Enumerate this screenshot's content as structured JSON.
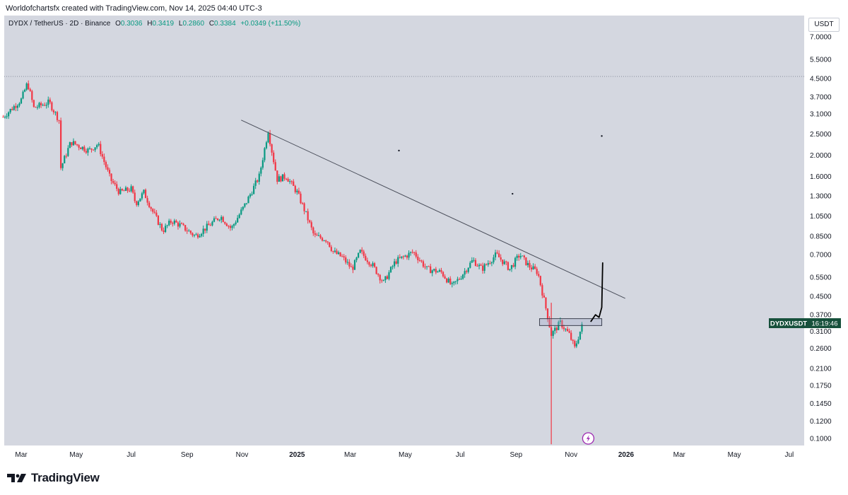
{
  "header": {
    "caption": "Worldofchartsfx created with TradingView.com, Nov 14, 2025 04:40 UTC-3"
  },
  "legend": {
    "symbol": "DYDX / TetherUS · 2D · Binance",
    "o_label": "O",
    "o_value": "0.3036",
    "h_label": "H",
    "h_value": "0.3419",
    "l_label": "L",
    "l_value": "0.2860",
    "c_label": "C",
    "c_value": "0.3384",
    "change": "+0.0349 (+11.50%)"
  },
  "currency_button": "USDT",
  "symbol_tag": {
    "name": "DYDXUSDT",
    "countdown": "16:19:46"
  },
  "footer": {
    "brand": "TradingView",
    "logo_icon": "tradingview-logo-icon"
  },
  "colors": {
    "up": "#089981",
    "down": "#f23645",
    "background": "#d4d7e0",
    "tag": "#16503b"
  },
  "chart_data": {
    "type": "candlestick",
    "y_scale": "log",
    "y_ticks": [
      "7.0000",
      "5.5000",
      "4.5000",
      "3.7000",
      "3.1000",
      "2.5000",
      "2.0000",
      "1.6000",
      "1.3000",
      "1.0500",
      "0.8500",
      "0.7000",
      "0.5500",
      "0.4500",
      "0.3700",
      "0.3100",
      "0.2600",
      "0.2100",
      "0.1750",
      "0.1450",
      "0.1200",
      "0.1000"
    ],
    "x_ticks": [
      "Mar",
      "May",
      "Jul",
      "Sep",
      "Nov",
      "2025",
      "Mar",
      "May",
      "Jul",
      "Sep",
      "Nov",
      "2026",
      "Mar",
      "May",
      "Jul"
    ],
    "x_range": [
      "2024-02-10",
      "2026-07-31"
    ],
    "price_path": [
      [
        "2024-02-10",
        3.0
      ],
      [
        "2024-03-01",
        3.6
      ],
      [
        "2024-03-08",
        4.3
      ],
      [
        "2024-03-15",
        3.3
      ],
      [
        "2024-04-01",
        3.5
      ],
      [
        "2024-04-12",
        2.9
      ],
      [
        "2024-04-14",
        1.75
      ],
      [
        "2024-04-25",
        2.3
      ],
      [
        "2024-05-15",
        2.1
      ],
      [
        "2024-05-25",
        2.25
      ],
      [
        "2024-06-08",
        1.55
      ],
      [
        "2024-06-18",
        1.35
      ],
      [
        "2024-07-01",
        1.4
      ],
      [
        "2024-07-06",
        1.2
      ],
      [
        "2024-07-15",
        1.35
      ],
      [
        "2024-07-25",
        1.1
      ],
      [
        "2024-08-05",
        0.9
      ],
      [
        "2024-08-15",
        1.0
      ],
      [
        "2024-08-25",
        0.95
      ],
      [
        "2024-09-10",
        0.85
      ],
      [
        "2024-09-25",
        0.95
      ],
      [
        "2024-10-08",
        1.05
      ],
      [
        "2024-10-20",
        0.92
      ],
      [
        "2024-11-05",
        1.2
      ],
      [
        "2024-11-20",
        1.6
      ],
      [
        "2024-11-30",
        2.6
      ],
      [
        "2024-12-03",
        2.2
      ],
      [
        "2024-12-10",
        1.55
      ],
      [
        "2024-12-20",
        1.6
      ],
      [
        "2025-01-01",
        1.35
      ],
      [
        "2025-01-10",
        1.1
      ],
      [
        "2025-01-20",
        0.85
      ],
      [
        "2025-02-03",
        0.82
      ],
      [
        "2025-02-10",
        0.72
      ],
      [
        "2025-02-20",
        0.68
      ],
      [
        "2025-03-03",
        0.6
      ],
      [
        "2025-03-12",
        0.72
      ],
      [
        "2025-03-25",
        0.63
      ],
      [
        "2025-04-07",
        0.52
      ],
      [
        "2025-04-20",
        0.65
      ],
      [
        "2025-05-10",
        0.72
      ],
      [
        "2025-05-25",
        0.6
      ],
      [
        "2025-06-10",
        0.58
      ],
      [
        "2025-06-22",
        0.5
      ],
      [
        "2025-07-01",
        0.55
      ],
      [
        "2025-07-15",
        0.66
      ],
      [
        "2025-07-25",
        0.6
      ],
      [
        "2025-08-10",
        0.7
      ],
      [
        "2025-08-25",
        0.6
      ],
      [
        "2025-09-05",
        0.7
      ],
      [
        "2025-09-15",
        0.62
      ],
      [
        "2025-09-25",
        0.58
      ],
      [
        "2025-10-05",
        0.38
      ],
      [
        "2025-10-10",
        0.3
      ],
      [
        "2025-10-20",
        0.34
      ],
      [
        "2025-10-30",
        0.3
      ],
      [
        "2025-11-05",
        0.26
      ],
      [
        "2025-11-14",
        0.3384
      ]
    ],
    "flash_crash": {
      "date": "2025-10-10",
      "low": 0.094
    },
    "trendline": {
      "start": [
        "2024-10-31",
        2.9
      ],
      "end": [
        "2025-12-31",
        0.44
      ]
    },
    "support_zone": {
      "start": "2025-09-27",
      "end": "2025-12-05",
      "low": 0.33,
      "high": 0.355
    },
    "projection": [
      [
        "2025-11-23",
        0.345
      ],
      [
        "2025-11-28",
        0.37
      ],
      [
        "2025-12-02",
        0.36
      ],
      [
        "2025-12-05",
        0.4
      ],
      [
        "2025-12-06",
        0.64
      ]
    ],
    "dotted_level": 4.6,
    "marker": "lightning-icon"
  }
}
